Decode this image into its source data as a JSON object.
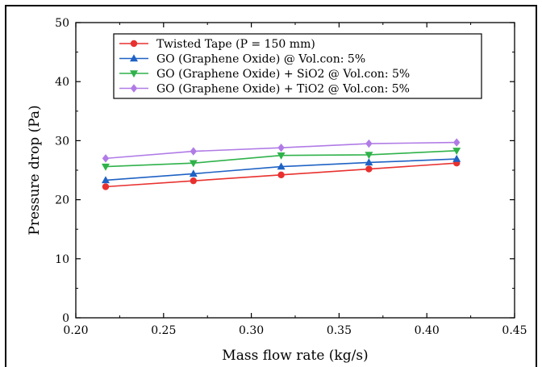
{
  "chart_data": {
    "type": "line",
    "xlabel": "Mass flow rate (kg/s)",
    "ylabel": "Pressure drop (Pa)",
    "xlim": [
      0.2,
      0.45
    ],
    "ylim": [
      0,
      50
    ],
    "xticks": [
      "0.20",
      "0.25",
      "0.30",
      "0.35",
      "0.40",
      "0.45"
    ],
    "yticks": [
      "0",
      "10",
      "20",
      "30",
      "40",
      "50"
    ],
    "x": [
      0.217,
      0.267,
      0.317,
      0.367,
      0.417
    ],
    "grid": false,
    "legend_position": "top-center",
    "series": [
      {
        "name": "Twisted Tape (P = 150 mm)",
        "color": "#e8312f",
        "marker": "circle",
        "values": [
          22.2,
          23.2,
          24.2,
          25.2,
          26.2
        ]
      },
      {
        "name": "GO (Graphene Oxide) @ Vol.con: 5%",
        "color": "#1f62c4",
        "marker": "triangle-up",
        "values": [
          23.3,
          24.4,
          25.6,
          26.3,
          26.9
        ]
      },
      {
        "name": "GO (Graphene Oxide) + SiO2 @ Vol.con: 5%",
        "color": "#2fb24a",
        "marker": "triangle-down",
        "values": [
          25.6,
          26.2,
          27.5,
          27.6,
          28.3
        ]
      },
      {
        "name": "GO (Graphene Oxide) + TiO2 @ Vol.con: 5%",
        "color": "#b07be6",
        "marker": "diamond",
        "values": [
          27.0,
          28.2,
          28.8,
          29.5,
          29.7
        ]
      }
    ]
  }
}
